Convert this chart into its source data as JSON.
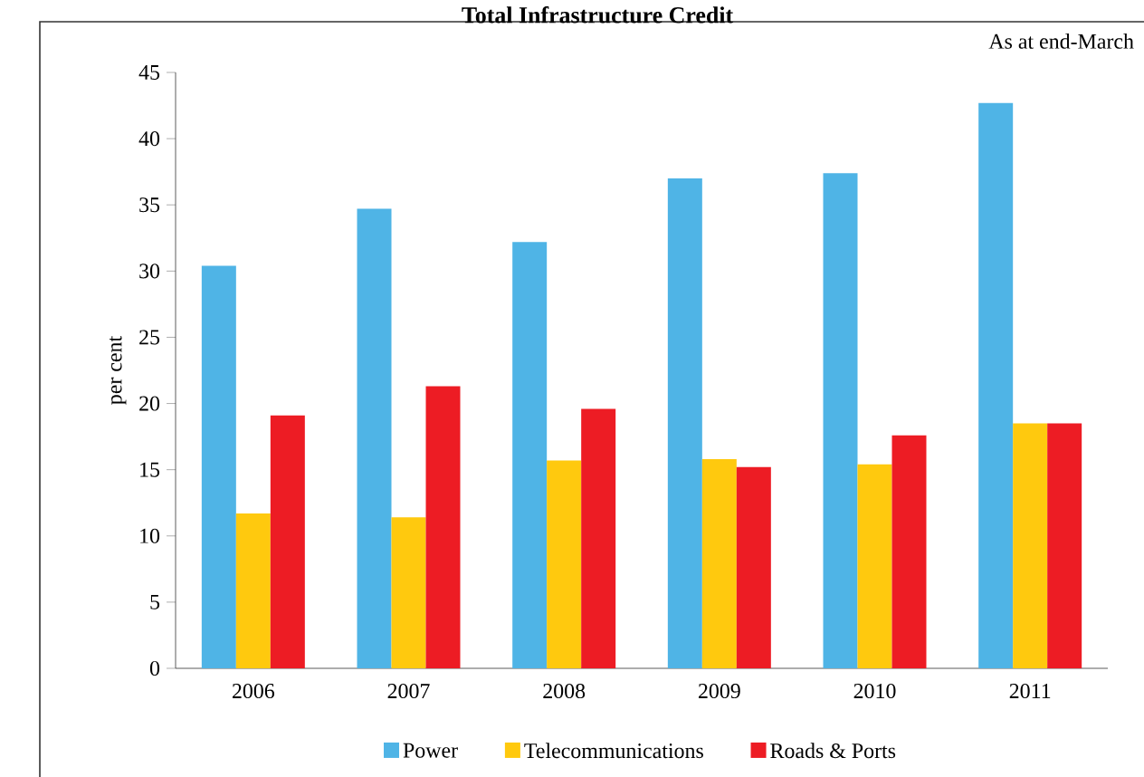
{
  "chart_data": {
    "type": "bar",
    "title": "Total Infrastructure Credit",
    "ylabel": "per cent",
    "annotations": [
      "As at end-March"
    ],
    "categories": [
      "2006",
      "2007",
      "2008",
      "2009",
      "2010",
      "2011"
    ],
    "series": [
      {
        "name": "Power",
        "color": "#4fb4e6",
        "values": [
          30.4,
          34.7,
          32.2,
          37.0,
          37.4,
          42.7
        ]
      },
      {
        "name": "Telecommunications",
        "color": "#ffc90e",
        "values": [
          11.7,
          11.4,
          15.7,
          15.8,
          15.4,
          18.5
        ]
      },
      {
        "name": "Roads & Ports",
        "color": "#ed1c24",
        "values": [
          19.1,
          21.3,
          19.6,
          15.2,
          17.6,
          18.5
        ]
      }
    ],
    "ylim": [
      0,
      45
    ],
    "yticks": [
      0,
      5,
      10,
      15,
      20,
      25,
      30,
      35,
      40,
      45
    ],
    "grid": false,
    "legend": "bottom"
  }
}
